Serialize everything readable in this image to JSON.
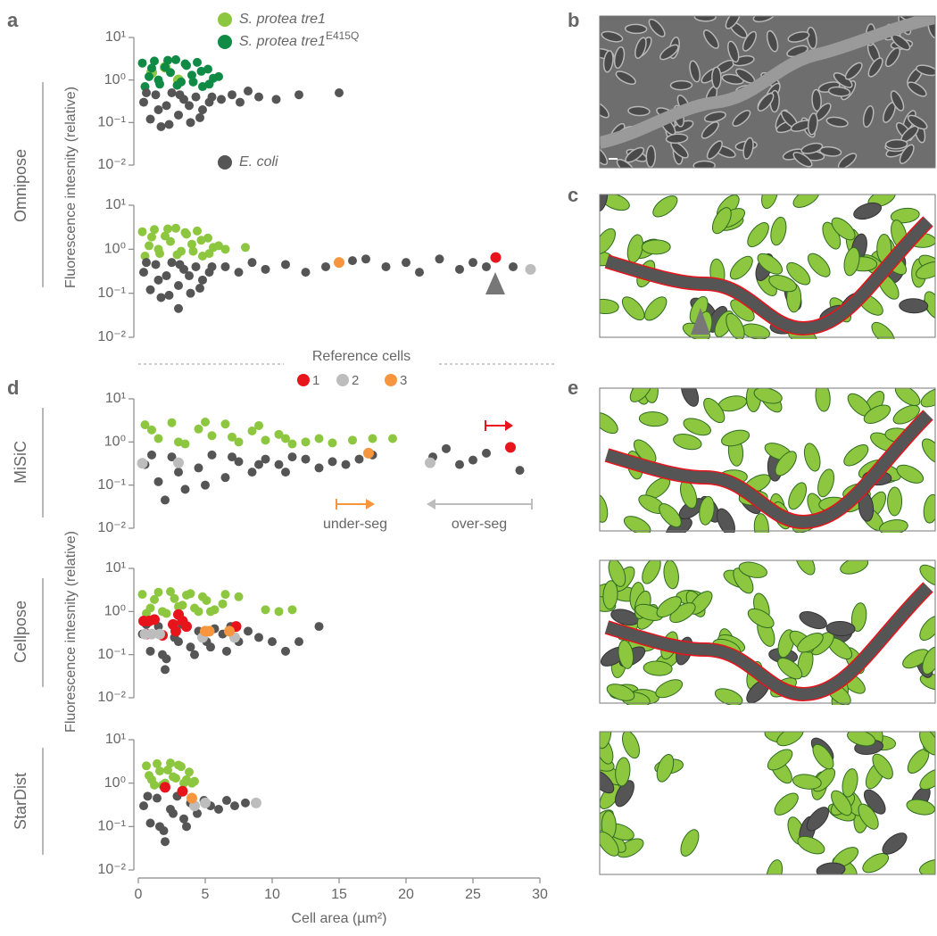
{
  "figure": {
    "panel_labels": [
      "a",
      "b",
      "c",
      "d",
      "e"
    ],
    "methods": [
      "Omnipose",
      "MiSiC",
      "Cellpose",
      "StarDist"
    ],
    "y_axis_title": "Fluorescence intesnity (relative)",
    "x_axis_title": "Cell area (µm²)",
    "reference_cells": {
      "title": "Reference cells",
      "labels": [
        "1",
        "2",
        "3"
      ],
      "colors": [
        "#e8141b",
        "#bdbdbd",
        "#f7963e"
      ]
    }
  },
  "chart_data": [
    {
      "type": "scatter",
      "log_y": true,
      "xlim": [
        0,
        30
      ],
      "ylim": [
        0.01,
        10
      ],
      "yticks": [
        {
          "value": 0.01,
          "label": "10⁻²"
        },
        {
          "value": 0.1,
          "label": "10⁻¹"
        },
        {
          "value": 1,
          "label": "10⁰"
        },
        {
          "value": 10,
          "label": "10¹"
        }
      ],
      "series": [
        {
          "name": "S. protea tre1",
          "color": "#8dc63f",
          "x": [
            1,
            2,
            3
          ],
          "values": [
            1.5,
            2,
            1
          ]
        },
        {
          "name": "S. protea tre1",
          "name_superscript": "E415Q",
          "color": "#0f8b45",
          "x": [
            0.3,
            0.8,
            1.2,
            1.6,
            2,
            2.4,
            2.8,
            3.2,
            3.6,
            4,
            4.4,
            4.8,
            5.2,
            5.6,
            0.5,
            1,
            1.5,
            2.2,
            2.9,
            3.5,
            4.1,
            4.7,
            5.3,
            6.0
          ],
          "values": [
            2.5,
            1.2,
            2.8,
            0.8,
            2,
            1.5,
            3,
            0.9,
            2.2,
            1.3,
            2.6,
            0.7,
            1.8,
            1.1,
            0.7,
            1.9,
            1.0,
            2.9,
            0.75,
            2.4,
            0.9,
            1.6,
            0.8,
            1.2
          ]
        },
        {
          "name": "E. coli",
          "color": "#555555",
          "x": [
            0.4,
            0.9,
            1.3,
            1.7,
            2.1,
            2.5,
            3,
            3.4,
            3.9,
            4.3,
            4.8,
            5.3,
            0.6,
            1.5,
            2.3,
            3.1,
            3.8,
            4.6,
            5.5,
            6.2,
            7,
            7.6,
            8.2,
            9,
            10.3,
            12,
            15
          ],
          "values": [
            0.3,
            0.12,
            0.45,
            0.08,
            0.25,
            0.5,
            0.15,
            0.35,
            0.1,
            0.4,
            0.2,
            0.3,
            0.5,
            0.2,
            0.09,
            0.45,
            0.25,
            0.13,
            0.4,
            0.35,
            0.45,
            0.3,
            0.55,
            0.4,
            0.35,
            0.45,
            0.5
          ]
        }
      ]
    },
    {
      "type": "scatter",
      "log_y": true,
      "xlim": [
        0,
        30
      ],
      "ylim": [
        0.01,
        10
      ],
      "yticks": [
        {
          "value": 0.01,
          "label": "10⁻²"
        },
        {
          "value": 0.1,
          "label": "10⁻¹"
        },
        {
          "value": 1,
          "label": "10⁰"
        },
        {
          "value": 10,
          "label": "10¹"
        }
      ],
      "series": [
        {
          "color": "#8dc63f",
          "x": [
            0.3,
            0.8,
            1.2,
            1.6,
            2,
            2.4,
            2.8,
            3.2,
            3.6,
            4,
            4.4,
            4.8,
            5.2,
            5.6,
            0.5,
            1,
            1.5,
            2.2,
            2.9,
            3.5,
            4.1,
            4.7,
            5.3,
            6.0,
            6.5,
            8
          ],
          "values": [
            2.5,
            1.2,
            2.8,
            0.8,
            2,
            1.5,
            3,
            0.9,
            2.2,
            1.3,
            2.6,
            0.7,
            1.8,
            1.1,
            0.7,
            1.9,
            1.0,
            2.9,
            0.75,
            2.4,
            0.9,
            1.6,
            0.8,
            1.2,
            1.0,
            1.1
          ]
        },
        {
          "color": "#555555",
          "x": [
            0.4,
            0.9,
            1.3,
            1.7,
            2.1,
            2.5,
            3,
            3.4,
            3.9,
            4.3,
            4.8,
            5.3,
            0.6,
            1.5,
            2.3,
            3.1,
            3.8,
            4.6,
            5.5,
            6.5,
            7.5,
            8.5,
            9.5,
            11,
            12.5,
            14,
            16,
            17,
            18.5,
            20,
            21,
            22.5,
            24,
            25,
            26,
            28,
            3
          ],
          "values": [
            0.3,
            0.12,
            0.45,
            0.08,
            0.25,
            0.5,
            0.15,
            0.35,
            0.1,
            0.4,
            0.2,
            0.3,
            0.5,
            0.2,
            0.09,
            0.45,
            0.25,
            0.13,
            0.4,
            0.4,
            0.3,
            0.5,
            0.35,
            0.45,
            0.3,
            0.4,
            0.55,
            0.6,
            0.4,
            0.5,
            0.3,
            0.6,
            0.35,
            0.5,
            0.4,
            0.4,
            0.045
          ]
        },
        {
          "color": "#e8141b",
          "x": [
            26.7
          ],
          "values": [
            0.65
          ]
        },
        {
          "color": "#bdbdbd",
          "x": [
            29.3
          ],
          "values": [
            0.35
          ]
        },
        {
          "color": "#f7963e",
          "x": [
            15
          ],
          "values": [
            0.5
          ]
        }
      ]
    },
    {
      "type": "scatter",
      "log_y": true,
      "xlim": [
        0,
        30
      ],
      "ylim": [
        0.01,
        10
      ],
      "yticks": [
        {
          "value": 0.01,
          "label": "10⁻²"
        },
        {
          "value": 0.1,
          "label": "10⁻¹"
        },
        {
          "value": 1,
          "label": "10⁰"
        },
        {
          "value": 10,
          "label": "10¹"
        }
      ],
      "annotations": [
        "under-seg",
        "over-seg"
      ],
      "series": [
        {
          "color": "#8dc63f",
          "x": [
            0.5,
            1.5,
            2.5,
            3.5,
            4.5,
            5.5,
            6.5,
            7.5,
            8.5,
            9.5,
            10.5,
            11.5,
            1,
            3,
            5,
            7,
            9,
            11,
            12.5,
            13.5,
            14.5,
            16,
            17.5,
            19
          ],
          "values": [
            2.5,
            1.2,
            2.8,
            0.9,
            2,
            1.4,
            2.6,
            1,
            1.8,
            1.1,
            1.5,
            0.9,
            1.9,
            1.0,
            2.9,
            1.3,
            2.4,
            1.2,
            1.0,
            1.2,
            0.95,
            1.1,
            1.2,
            1.2
          ]
        },
        {
          "color": "#555555",
          "x": [
            0.5,
            1.5,
            2.5,
            3.5,
            4.5,
            5.5,
            6.5,
            7.5,
            8.5,
            9.5,
            10.5,
            11.5,
            1,
            3,
            5,
            7,
            9,
            11,
            12.5,
            13.5,
            14.5,
            15.5,
            16.5,
            17.5,
            2,
            22,
            23,
            24,
            25,
            26,
            28.5
          ],
          "values": [
            0.3,
            0.12,
            0.45,
            0.08,
            0.25,
            0.5,
            0.15,
            0.35,
            0.2,
            0.4,
            0.3,
            0.45,
            0.5,
            0.2,
            0.1,
            0.45,
            0.3,
            0.2,
            0.4,
            0.25,
            0.35,
            0.3,
            0.4,
            0.5,
            0.045,
            0.45,
            0.7,
            0.3,
            0.38,
            0.55,
            0.22
          ]
        },
        {
          "color": "#e8141b",
          "x": [
            27.8
          ],
          "values": [
            0.75
          ]
        },
        {
          "color": "#bdbdbd",
          "x": [
            0.3,
            3,
            21.8
          ],
          "values": [
            0.32,
            0.33,
            0.33
          ]
        },
        {
          "color": "#f7963e",
          "x": [
            17.2
          ],
          "values": [
            0.55
          ]
        }
      ]
    },
    {
      "type": "scatter",
      "log_y": true,
      "xlim": [
        0,
        30
      ],
      "ylim": [
        0.01,
        10
      ],
      "yticks": [
        {
          "value": 0.01,
          "label": "10⁻²"
        },
        {
          "value": 0.1,
          "label": "10⁻¹"
        },
        {
          "value": 1,
          "label": "10⁰"
        },
        {
          "value": 10,
          "label": "10¹"
        }
      ],
      "series": [
        {
          "color": "#8dc63f",
          "x": [
            0.3,
            0.9,
            1.5,
            2.1,
            2.7,
            3.3,
            3.9,
            4.5,
            5.1,
            5.7,
            6.3,
            0.6,
            1.2,
            1.8,
            2.4,
            3,
            3.6,
            4.2,
            4.8,
            5.4,
            6.5,
            7.5,
            9.5,
            10.5,
            11.5
          ],
          "values": [
            2.5,
            1.2,
            2.8,
            0.9,
            2,
            1.4,
            2.6,
            1,
            1.8,
            1.1,
            1.5,
            0.9,
            1.9,
            1.0,
            2.9,
            1.3,
            2.4,
            1.2,
            2.2,
            1.0,
            2.5,
            2.2,
            1.1,
            1.0,
            1.1
          ]
        },
        {
          "color": "#555555",
          "x": [
            0.3,
            0.9,
            1.5,
            2.1,
            2.7,
            3.3,
            3.9,
            4.5,
            5.1,
            5.7,
            6.3,
            6.9,
            7.5,
            8.2,
            9,
            10,
            11,
            12,
            13.5,
            0.6,
            1.8,
            3,
            4.2,
            5.4,
            6.6,
            2
          ],
          "values": [
            0.3,
            0.12,
            0.45,
            0.08,
            0.25,
            0.5,
            0.15,
            0.35,
            0.2,
            0.4,
            0.3,
            0.45,
            0.2,
            0.35,
            0.25,
            0.2,
            0.12,
            0.2,
            0.45,
            0.5,
            0.1,
            0.2,
            0.1,
            0.15,
            0.12,
            0.045
          ]
        },
        {
          "color": "#e8141b",
          "x": [
            0.4,
            0.8,
            1.2,
            0.6,
            1.8,
            2.6,
            3,
            3.3,
            3.6,
            2.8,
            7.3
          ],
          "values": [
            0.6,
            0.6,
            0.65,
            0.3,
            0.28,
            0.5,
            0.85,
            0.6,
            0.45,
            0.35,
            0.45
          ]
        },
        {
          "color": "#bdbdbd",
          "x": [
            0.5,
            1,
            1.6,
            4.8,
            7.2
          ],
          "values": [
            0.3,
            0.3,
            0.3,
            0.25,
            0.25
          ]
        },
        {
          "color": "#f7963e",
          "x": [
            5,
            5.3,
            6.8
          ],
          "values": [
            0.35,
            0.35,
            0.35
          ]
        }
      ]
    },
    {
      "type": "scatter",
      "log_y": true,
      "xlim": [
        0,
        30
      ],
      "ylim": [
        0.01,
        10
      ],
      "yticks": [
        {
          "value": 0.01,
          "label": "10⁻²"
        },
        {
          "value": 0.1,
          "label": "10⁻¹"
        },
        {
          "value": 1,
          "label": "10⁰"
        },
        {
          "value": 10,
          "label": "10¹"
        }
      ],
      "xticks": [
        0,
        5,
        10,
        15,
        20,
        25,
        30
      ],
      "series": [
        {
          "color": "#8dc63f",
          "x": [
            0.6,
            1,
            1.4,
            1.8,
            2.2,
            2.6,
            3,
            3.4,
            3.8,
            4.2,
            0.8,
            1.2,
            1.6,
            2,
            2.4,
            2.8,
            3.2,
            3.6,
            4
          ],
          "values": [
            2.5,
            1.2,
            2.8,
            0.9,
            2,
            1.4,
            2.6,
            1,
            1.8,
            1.1,
            1.5,
            0.9,
            1.9,
            1.0,
            2.9,
            1.3,
            2.4,
            1.2,
            1.0
          ]
        },
        {
          "color": "#555555",
          "x": [
            0.4,
            0.9,
            1.4,
            1.9,
            2.4,
            2.9,
            3.4,
            3.9,
            4.4,
            4.9,
            5.4,
            6,
            6.6,
            7.2,
            8,
            0.7,
            1.6,
            2.6,
            3.6,
            2
          ],
          "values": [
            0.3,
            0.12,
            0.45,
            0.08,
            0.25,
            0.5,
            0.15,
            0.35,
            0.2,
            0.4,
            0.3,
            0.25,
            0.4,
            0.3,
            0.35,
            0.5,
            0.1,
            0.2,
            0.1,
            0.045
          ]
        },
        {
          "color": "#e8141b",
          "x": [
            2,
            3.3
          ],
          "values": [
            0.8,
            0.65
          ]
        },
        {
          "color": "#bdbdbd",
          "x": [
            4.2,
            5,
            8.8
          ],
          "values": [
            0.3,
            0.35,
            0.35
          ]
        },
        {
          "color": "#f7963e",
          "x": [
            4
          ],
          "values": [
            0.45
          ]
        }
      ]
    }
  ]
}
